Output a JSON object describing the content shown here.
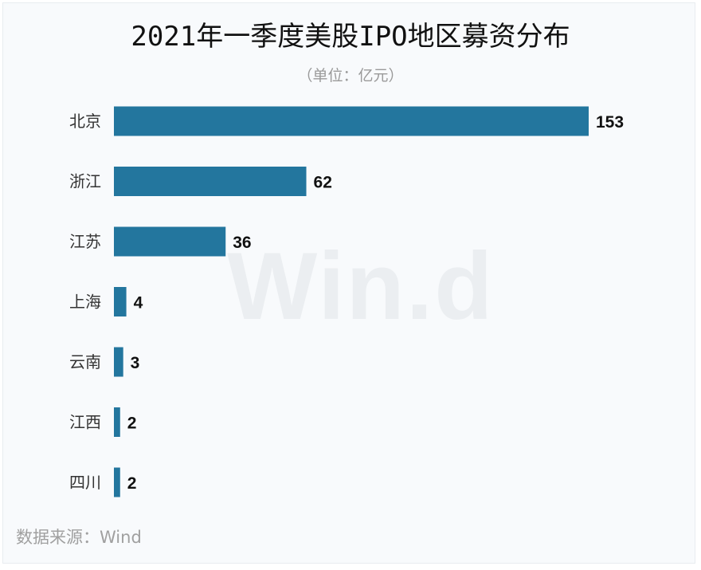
{
  "title": "2021年一季度美股IPO地区募资分布",
  "subtitle": "（单位：亿元）",
  "watermark": "Win.d",
  "source": "数据来源：Wind",
  "colors": {
    "bar": "#23769e",
    "label": "#111111",
    "category": "#333333"
  },
  "chart_data": {
    "type": "bar",
    "orientation": "horizontal",
    "categories": [
      "北京",
      "浙江",
      "江苏",
      "上海",
      "云南",
      "江西",
      "四川"
    ],
    "values": [
      153,
      62,
      36,
      4,
      3,
      2,
      2
    ],
    "title": "2021年一季度美股IPO地区募资分布",
    "unit": "（单位：亿元）",
    "xlabel": "",
    "ylabel": "",
    "grid": false,
    "legend": "none"
  }
}
